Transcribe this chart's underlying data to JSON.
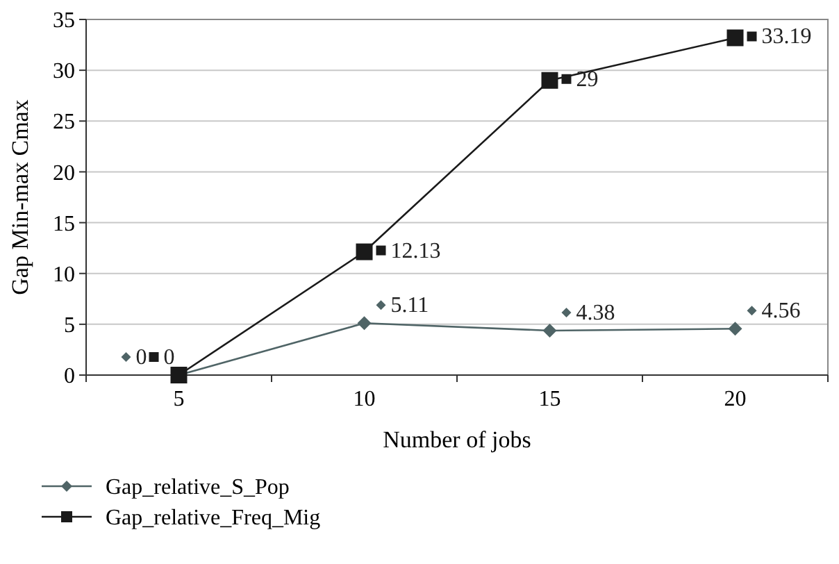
{
  "chart_data": {
    "type": "line",
    "xlabel": "Number of jobs",
    "ylabel": "Gap Min-max Cmax",
    "categories": [
      "5",
      "10",
      "15",
      "20"
    ],
    "series": [
      {
        "name": "Gap_relative_S_Pop",
        "color": "#4f6466",
        "marker": "diamond",
        "values": [
          0,
          5.11,
          4.38,
          4.56
        ]
      },
      {
        "name": "Gap_relative_Freq_Mig",
        "color": "#1a1a1a",
        "marker": "square",
        "values": [
          0,
          12.13,
          29,
          33.19
        ]
      }
    ],
    "ylim": [
      0,
      35
    ],
    "yticks": [
      0,
      5,
      10,
      15,
      20,
      25,
      30,
      35
    ],
    "grid": "y",
    "legend": "bottom",
    "line_style": "solid",
    "data_labels": true
  }
}
